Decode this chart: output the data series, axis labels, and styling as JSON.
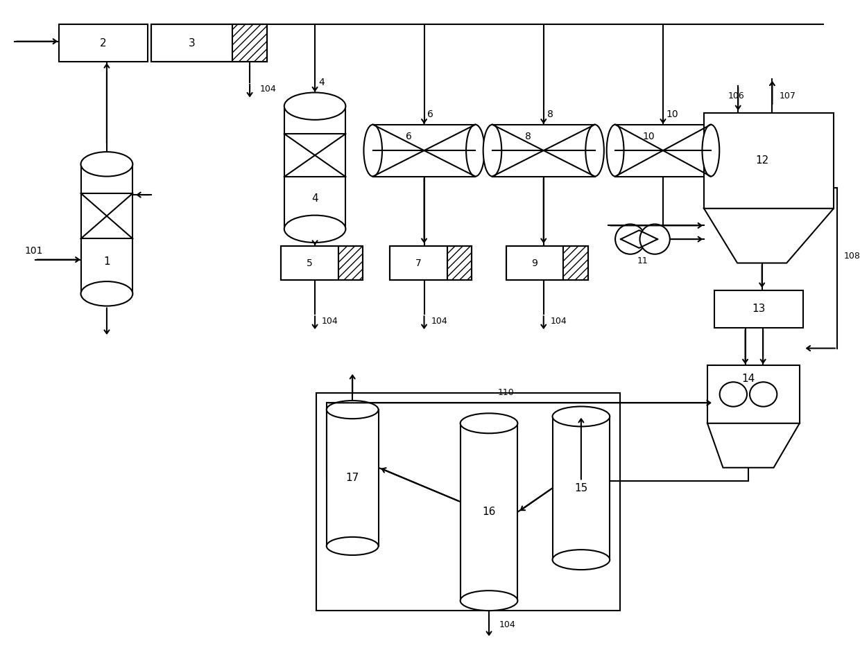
{
  "bg_color": "#ffffff",
  "lc": "#000000",
  "lw": 1.5,
  "figsize": [
    12.4,
    9.48
  ],
  "dpi": 100,
  "xlim": [
    0,
    124
  ],
  "ylim": [
    0,
    94.8
  ]
}
